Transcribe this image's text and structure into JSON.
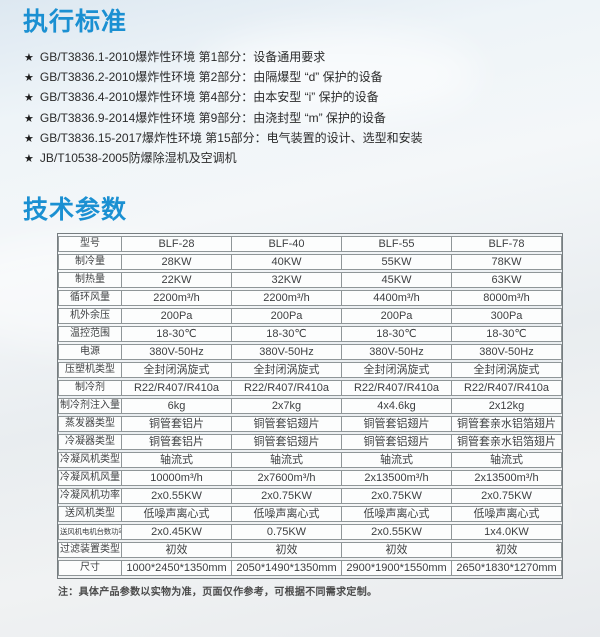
{
  "colors": {
    "accent": "#1b90d2",
    "table_border": "#8f9698",
    "cell_bg": "#fcfdfd"
  },
  "standards": {
    "title": "执行标准",
    "bullet": "★",
    "items": [
      "GB/T3836.1-2010爆炸性环境 第1部分：设备通用要求",
      "GB/T3836.2-2010爆炸性环境 第2部分：由隔爆型 “d” 保护的设备",
      "GB/T3836.4-2010爆炸性环境 第4部分：由本安型 “i” 保护的设备",
      "GB/T3836.9-2014爆炸性环境 第9部分：由浇封型 “m” 保护的设备",
      "GB/T3836.15-2017爆炸性环境 第15部分：电气装置的设计、选型和安装",
      "JB/T10538-2005防爆除湿机及空调机"
    ]
  },
  "specs": {
    "title": "技术参数",
    "table": {
      "header": {
        "label": "型号",
        "values": [
          "BLF-28",
          "BLF-40",
          "BLF-55",
          "BLF-78"
        ]
      },
      "rows": [
        {
          "label": "制冷量",
          "values": [
            "28KW",
            "40KW",
            "55KW",
            "78KW"
          ]
        },
        {
          "label": "制热量",
          "values": [
            "22KW",
            "32KW",
            "45KW",
            "63KW"
          ]
        },
        {
          "label": "循环风量",
          "values": [
            "2200m³/h",
            "2200m³/h",
            "4400m³/h",
            "8000m³/h"
          ]
        },
        {
          "label": "机外余压",
          "values": [
            "200Pa",
            "200Pa",
            "200Pa",
            "300Pa"
          ]
        },
        {
          "label": "温控范围",
          "values": [
            "18-30℃",
            "18-30℃",
            "18-30℃",
            "18-30℃"
          ]
        },
        {
          "label": "电源",
          "values": [
            "380V-50Hz",
            "380V-50Hz",
            "380V-50Hz",
            "380V-50Hz"
          ]
        },
        {
          "label": "压塑机类型",
          "values": [
            "全封闭涡旋式",
            "全封闭涡旋式",
            "全封闭涡旋式",
            "全封闭涡旋式"
          ]
        },
        {
          "label": "制冷剂",
          "values": [
            "R22/R407/R410a",
            "R22/R407/R410a",
            "R22/R407/R410a",
            "R22/R407/R410a"
          ]
        },
        {
          "label": "制冷剂注入量",
          "values": [
            "6kg",
            "2x7kg",
            "4x4.6kg",
            "2x12kg"
          ]
        },
        {
          "label": "蒸发器类型",
          "values": [
            "铜管套铝片",
            "铜管套铝翅片",
            "铜管套铝翅片",
            "铜管套亲水铝箔翅片"
          ]
        },
        {
          "label": "冷凝器类型",
          "values": [
            "铜管套铝片",
            "铜管套铝翅片",
            "铜管套铝翅片",
            "铜管套亲水铝箔翅片"
          ]
        },
        {
          "label": "冷凝风机类型",
          "values": [
            "轴流式",
            "轴流式",
            "轴流式",
            "轴流式"
          ]
        },
        {
          "label": "冷凝风机风量",
          "values": [
            "10000m³/h",
            "2x7600m³/h",
            "2x13500m³/h",
            "2x13500m³/h"
          ]
        },
        {
          "label": "冷凝风机功率",
          "values": [
            "2x0.55KW",
            "2x0.75KW",
            "2x0.75KW",
            "2x0.75KW"
          ]
        },
        {
          "label": "送风机类型",
          "values": [
            "低噪声离心式",
            "低噪声离心式",
            "低噪声离心式",
            "低噪声离心式"
          ]
        },
        {
          "label": "送风机电机台数功率",
          "values": [
            "2x0.45KW",
            "0.75KW",
            "2x0.55KW",
            "1x4.0KW"
          ]
        },
        {
          "label": "过滤装置类型",
          "values": [
            "初效",
            "初效",
            "初效",
            "初效"
          ]
        },
        {
          "label": "尺寸",
          "values": [
            "1000*2450*1350mm",
            "2050*1490*1350mm",
            "2900*1900*1550mm",
            "2650*1830*1270mm"
          ]
        }
      ]
    },
    "note": "注：具体产品参数以实物为准，页面仅作参考，可根据不同需求定制。"
  }
}
